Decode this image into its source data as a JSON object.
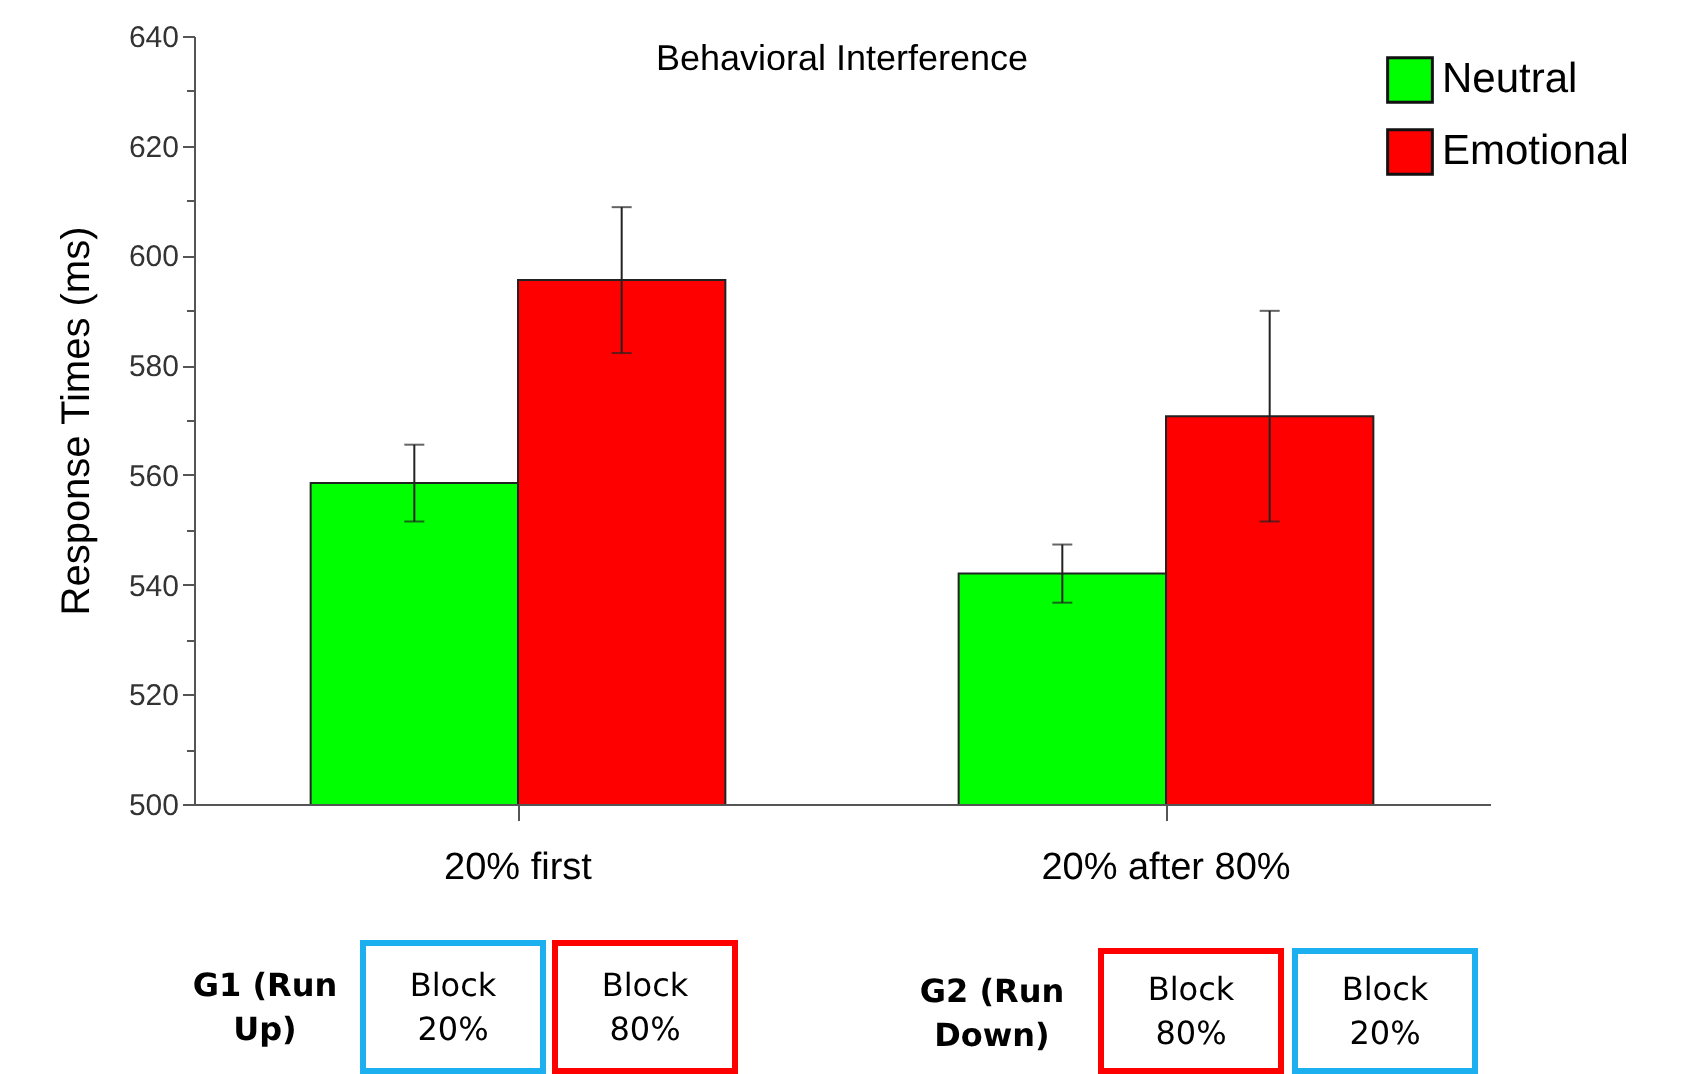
{
  "chart_data": {
    "type": "bar",
    "title": "Behavioral Interference",
    "ylabel": "Response Times (ms)",
    "categories": [
      "20% first",
      "20% after 80%"
    ],
    "series": [
      {
        "name": "Neutral",
        "color": "#00ff00",
        "values": [
          558.5,
          542
        ],
        "errors": [
          7,
          5.3
        ]
      },
      {
        "name": "Emotional",
        "color": "#ff0000",
        "values": [
          595.5,
          570.7
        ],
        "errors": [
          13.3,
          19.2
        ]
      }
    ],
    "ylim": [
      500,
      640
    ],
    "yticks": [
      500,
      {
        "value": 510,
        "label": null
      },
      520,
      {
        "value": 530,
        "label": null
      },
      540,
      {
        "value": 550,
        "label": null
      },
      560,
      {
        "value": 570,
        "label": null
      },
      580,
      {
        "value": 590,
        "label": null
      },
      600,
      {
        "value": 610,
        "label": null
      },
      620,
      {
        "value": 630,
        "label": null
      },
      640
    ],
    "legend": "top right",
    "grid": false,
    "annotations": [
      "G1 (Run Up)",
      "Block 20%",
      "Block 80%",
      "G2 (Run Down)",
      "Block 80%",
      "Block 20%"
    ]
  }
}
